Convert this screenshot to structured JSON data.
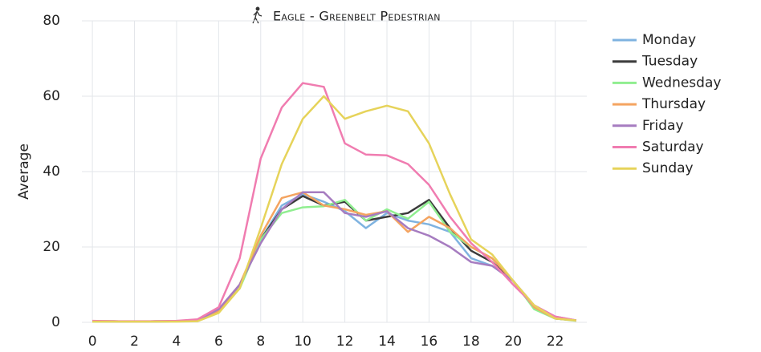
{
  "chart_data": {
    "type": "line",
    "title": "Eagle - Greenbelt Pedestrian",
    "y_label": "Average",
    "x": [
      0,
      1,
      2,
      3,
      4,
      5,
      6,
      7,
      8,
      9,
      10,
      11,
      12,
      13,
      14,
      15,
      16,
      17,
      18,
      19,
      20,
      21,
      22,
      23
    ],
    "xlim": [
      -0.5,
      23.5
    ],
    "xticks": [
      0,
      2,
      4,
      6,
      8,
      10,
      12,
      14,
      16,
      18,
      20,
      22
    ],
    "ylim": [
      0,
      80
    ],
    "yticks": [
      0,
      20,
      40,
      60,
      80
    ],
    "grid": true,
    "legend": "right",
    "series": [
      {
        "name": "Monday",
        "color": "#7fb3e0",
        "values": [
          0.3,
          0.2,
          0.2,
          0.2,
          0.3,
          0.5,
          3,
          10,
          22,
          31,
          34,
          32,
          29.5,
          25,
          29,
          27,
          26,
          24,
          17,
          15,
          11,
          4,
          1,
          0.5
        ]
      },
      {
        "name": "Tuesday",
        "color": "#3b3b3b",
        "values": [
          0.3,
          0.3,
          0.2,
          0.3,
          0.3,
          0.6,
          3,
          10,
          22,
          30,
          33.5,
          31,
          32,
          27,
          28,
          29,
          32.5,
          25,
          19,
          16,
          11,
          4,
          1,
          0.5
        ]
      },
      {
        "name": "Wednesday",
        "color": "#90ee90",
        "values": [
          0.2,
          0.2,
          0.2,
          0.2,
          0.3,
          0.4,
          3,
          9,
          22,
          29,
          30.5,
          30.8,
          32.5,
          27,
          30,
          27.5,
          32,
          24,
          20,
          17,
          11,
          3.5,
          1,
          0.4
        ]
      },
      {
        "name": "Thursday",
        "color": "#f4a460",
        "values": [
          0.3,
          0.3,
          0.2,
          0.3,
          0.3,
          0.5,
          3,
          10,
          23,
          33,
          34.5,
          31,
          30,
          28.5,
          29.5,
          24,
          28,
          25,
          20,
          17,
          11,
          4,
          1,
          0.5
        ]
      },
      {
        "name": "Friday",
        "color": "#a67cc0",
        "values": [
          0.3,
          0.2,
          0.2,
          0.2,
          0.3,
          0.5,
          3.5,
          10,
          21,
          30,
          34.5,
          34.5,
          29,
          28,
          29.5,
          25,
          23,
          20,
          16,
          15,
          11,
          4.5,
          1.5,
          0.5
        ]
      },
      {
        "name": "Saturday",
        "color": "#f07cb0",
        "values": [
          0.4,
          0.3,
          0.3,
          0.3,
          0.4,
          0.8,
          4,
          17,
          43.5,
          57,
          63.5,
          62.5,
          47.5,
          44.5,
          44.3,
          42,
          36.5,
          28,
          21,
          16,
          10,
          4.5,
          1.5,
          0.5
        ]
      },
      {
        "name": "Sunday",
        "color": "#e6d35a",
        "values": [
          0.2,
          0.2,
          0.2,
          0.2,
          0.2,
          0.3,
          2.5,
          9,
          25,
          42,
          54,
          60,
          54,
          56,
          57.5,
          56,
          47.5,
          34,
          22,
          18,
          11,
          4.5,
          1,
          0.5
        ]
      }
    ]
  }
}
